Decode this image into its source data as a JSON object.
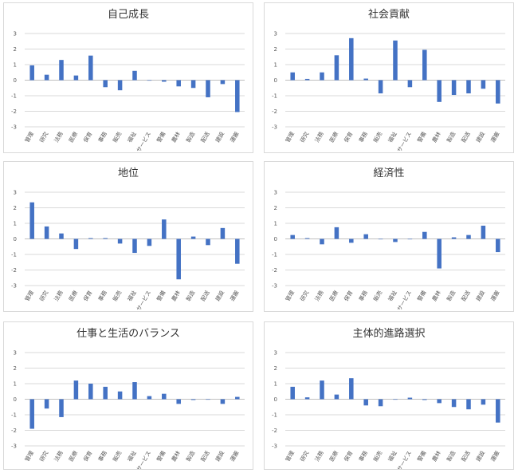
{
  "colors": {
    "bar": "#4472c4",
    "grid": "#d9d9d9",
    "text": "#595959"
  },
  "chart_data": [
    {
      "type": "bar",
      "title": "自己成長",
      "ylim": [
        -3,
        3
      ],
      "yticks": [
        "3",
        "2",
        "1",
        "0",
        "-1",
        "-2",
        "-3"
      ],
      "categories": [
        "管理",
        "研究",
        "法務",
        "医療",
        "保育",
        "事務",
        "販売",
        "福祉",
        "サービス",
        "警備",
        "農林",
        "製造",
        "配送",
        "建設",
        "運搬"
      ],
      "values": [
        0.95,
        0.35,
        1.3,
        0.3,
        1.58,
        -0.45,
        -0.65,
        0.6,
        0.0,
        -0.1,
        -0.4,
        -0.5,
        -1.1,
        -0.25,
        -2.05
      ]
    },
    {
      "type": "bar",
      "title": "社会貢献",
      "ylim": [
        -3,
        3
      ],
      "yticks": [
        "3",
        "2",
        "1",
        "0",
        "-1",
        "-2",
        "-3"
      ],
      "categories": [
        "管理",
        "研究",
        "法務",
        "医療",
        "保育",
        "事務",
        "販売",
        "福祉",
        "サービス",
        "警備",
        "農林",
        "製造",
        "配送",
        "建設",
        "運搬"
      ],
      "values": [
        0.5,
        0.08,
        0.5,
        1.6,
        2.7,
        0.1,
        -0.85,
        2.55,
        -0.45,
        1.95,
        -1.4,
        -0.95,
        -0.85,
        -0.55,
        -1.5
      ]
    },
    {
      "type": "bar",
      "title": "地位",
      "ylim": [
        -3,
        3
      ],
      "yticks": [
        "3",
        "2",
        "1",
        "0",
        "-1",
        "-2",
        "-3"
      ],
      "categories": [
        "管理",
        "研究",
        "法務",
        "医療",
        "保育",
        "事務",
        "販売",
        "福祉",
        "サービス",
        "警備",
        "農林",
        "製造",
        "配送",
        "建設",
        "運搬"
      ],
      "values": [
        2.35,
        0.8,
        0.35,
        -0.65,
        0.05,
        0.05,
        -0.3,
        -0.9,
        -0.45,
        1.25,
        -2.6,
        0.15,
        -0.4,
        0.7,
        -1.6
      ]
    },
    {
      "type": "bar",
      "title": "経済性",
      "ylim": [
        -3,
        3
      ],
      "yticks": [
        "3",
        "2",
        "1",
        "0",
        "-1",
        "-2",
        "-3"
      ],
      "categories": [
        "管理",
        "研究",
        "法務",
        "医療",
        "保育",
        "事務",
        "販売",
        "福祉",
        "サービス",
        "警備",
        "農林",
        "製造",
        "配送",
        "建設",
        "運搬"
      ],
      "values": [
        0.25,
        0.05,
        -0.35,
        0.75,
        -0.25,
        0.3,
        0.0,
        -0.2,
        0.0,
        0.45,
        -1.9,
        0.1,
        0.25,
        0.85,
        -0.85
      ]
    },
    {
      "type": "bar",
      "title": "仕事と生活のバランス",
      "ylim": [
        -3,
        3
      ],
      "yticks": [
        "3",
        "2",
        "1",
        "0",
        "-1",
        "-2",
        "-3"
      ],
      "categories": [
        "管理",
        "研究",
        "法務",
        "医療",
        "保育",
        "事務",
        "販売",
        "福祉",
        "サービス",
        "警備",
        "農林",
        "製造",
        "配送",
        "建設",
        "運搬"
      ],
      "values": [
        -1.9,
        -0.6,
        -1.15,
        1.2,
        1.0,
        0.8,
        0.5,
        1.1,
        0.2,
        0.35,
        -0.3,
        -0.05,
        0.0,
        -0.3,
        0.15
      ]
    },
    {
      "type": "bar",
      "title": "主体的進路選択",
      "ylim": [
        -3,
        3
      ],
      "yticks": [
        "3",
        "2",
        "1",
        "0",
        "-1",
        "-2",
        "-3"
      ],
      "categories": [
        "管理",
        "研究",
        "法務",
        "医療",
        "保育",
        "事務",
        "販売",
        "福祉",
        "サービス",
        "警備",
        "農林",
        "製造",
        "配送",
        "建設",
        "運搬"
      ],
      "values": [
        0.8,
        0.12,
        1.2,
        0.3,
        1.35,
        -0.4,
        -0.45,
        0.0,
        0.1,
        -0.05,
        -0.25,
        -0.5,
        -0.65,
        -0.35,
        -1.5
      ]
    }
  ]
}
